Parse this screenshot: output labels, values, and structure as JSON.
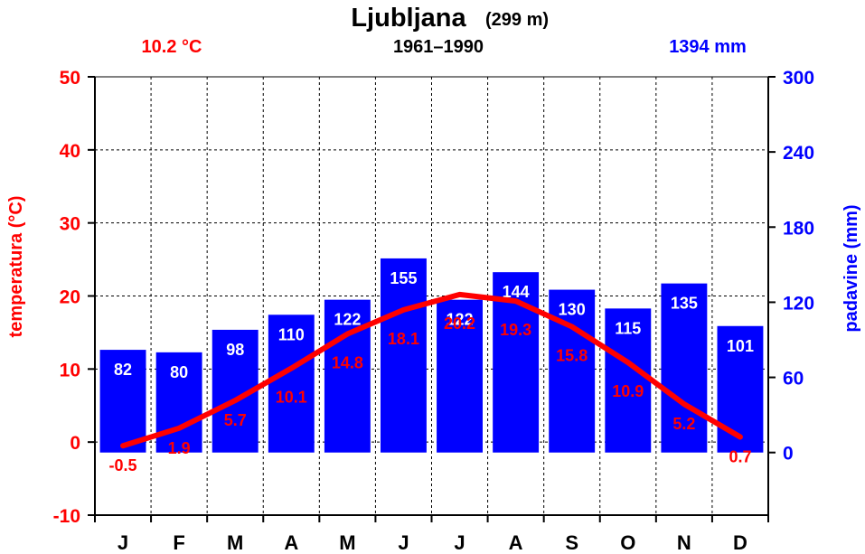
{
  "chart_data": {
    "type": "bar",
    "title": "Ljubljana",
    "title_suffix": "(299 m)",
    "subtitle": "1961–1990",
    "annual_temp_label": "10.2 °C",
    "annual_precip_label": "1394 mm",
    "ylabel_left": "temperatura (°C)",
    "ylabel_right": "padavine (mm)",
    "categories": [
      "J",
      "F",
      "M",
      "A",
      "M",
      "J",
      "J",
      "A",
      "S",
      "O",
      "N",
      "D"
    ],
    "ylim_left": [
      -10,
      50
    ],
    "yticks_left": [
      -10,
      0,
      10,
      20,
      30,
      40,
      50
    ],
    "ylim_right": [
      -50,
      300
    ],
    "yticks_right": [
      0,
      60,
      120,
      180,
      240,
      300
    ],
    "grid": true,
    "series": [
      {
        "name": "padavine",
        "kind": "bar",
        "axis": "right",
        "color": "#0000ff",
        "values": [
          82,
          80,
          98,
          110,
          122,
          155,
          122,
          144,
          130,
          115,
          135,
          101
        ]
      },
      {
        "name": "temperatura",
        "kind": "line",
        "axis": "left",
        "color": "#ff0000",
        "values": [
          -0.5,
          1.9,
          5.7,
          10.1,
          14.8,
          18.1,
          20.2,
          19.3,
          15.8,
          10.9,
          5.2,
          0.7
        ]
      }
    ]
  },
  "colors": {
    "temperature": "#ff0000",
    "precipitation": "#0000ff",
    "grid": "#000000",
    "text": "#000000"
  }
}
